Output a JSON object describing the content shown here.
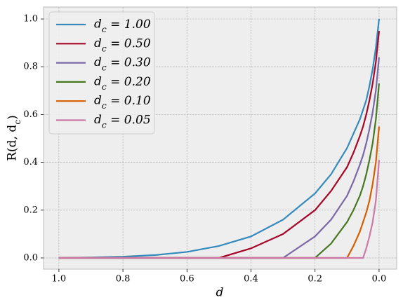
{
  "chart_data": {
    "type": "line",
    "x_label": "d",
    "y_label": "R(d, d_c)",
    "x": [
      1,
      0.9,
      0.8,
      0.7,
      0.6,
      0.5,
      0.4,
      0.3,
      0.2,
      0.15,
      0.1,
      0.08,
      0.06,
      0.05,
      0.04,
      0.03,
      0.02,
      0.01,
      0
    ],
    "series": [
      {
        "name": "d_c = 1.00",
        "color": "#348ABD",
        "values": [
          0,
          0.002,
          0.005,
          0.012,
          0.025,
          0.05,
          0.09,
          0.16,
          0.27,
          0.35,
          0.46,
          0.52,
          0.58,
          0.62,
          0.66,
          0.72,
          0.79,
          0.88,
          1.0
        ]
      },
      {
        "name": "d_c = 0.50",
        "color": "#A60628",
        "values": [
          0,
          0,
          0,
          0,
          0,
          0,
          0.04,
          0.1,
          0.2,
          0.28,
          0.38,
          0.44,
          0.51,
          0.55,
          0.6,
          0.66,
          0.73,
          0.82,
          0.95
        ]
      },
      {
        "name": "d_c = 0.30",
        "color": "#7A68A6",
        "values": [
          0,
          0,
          0,
          0,
          0,
          0,
          0,
          0,
          0.09,
          0.16,
          0.26,
          0.32,
          0.39,
          0.43,
          0.48,
          0.54,
          0.61,
          0.7,
          0.84
        ]
      },
      {
        "name": "d_c = 0.20",
        "color": "#467821",
        "values": [
          0,
          0,
          0,
          0,
          0,
          0,
          0,
          0,
          0,
          0.06,
          0.15,
          0.2,
          0.26,
          0.3,
          0.35,
          0.41,
          0.48,
          0.58,
          0.73
        ]
      },
      {
        "name": "d_c = 0.10",
        "color": "#D55E00",
        "values": [
          0,
          0,
          0,
          0,
          0,
          0,
          0,
          0,
          0,
          0,
          0,
          0.05,
          0.11,
          0.15,
          0.19,
          0.24,
          0.31,
          0.4,
          0.55
        ]
      },
      {
        "name": "d_c = 0.05",
        "color": "#CC79A7",
        "values": [
          0,
          0,
          0,
          0,
          0,
          0,
          0,
          0,
          0,
          0,
          0,
          0,
          0,
          0,
          0.04,
          0.09,
          0.15,
          0.24,
          0.41
        ]
      }
    ],
    "xlim": [
      1.048,
      -0.055
    ],
    "ylim": [
      -0.047,
      1.05
    ],
    "xticks": [
      {
        "value": 1,
        "label": "1.0"
      },
      0.8,
      0.6,
      0.4,
      0.2,
      {
        "value": 0,
        "label": "0.0"
      }
    ],
    "yticks": [
      {
        "value": 0,
        "label": "0.0"
      },
      0.2,
      0.4,
      0.6,
      0.8,
      {
        "value": 1,
        "label": "1.0"
      }
    ],
    "grid": true,
    "legend": "upper left"
  }
}
